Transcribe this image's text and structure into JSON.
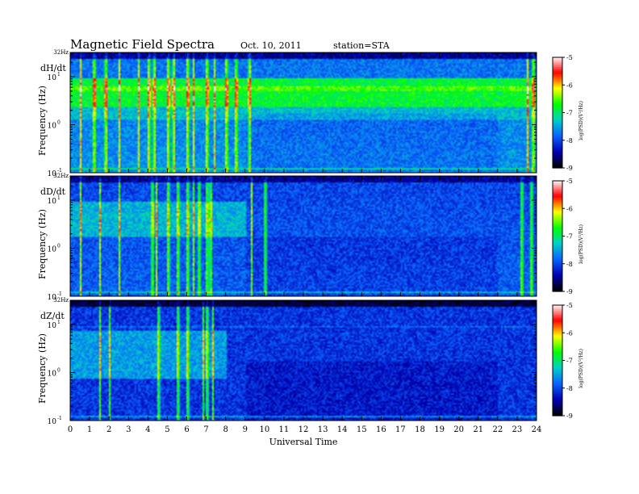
{
  "header": {
    "title": "Magnetic  Field  Spectra",
    "date": "Oct. 10, 2011",
    "station": "station=STA"
  },
  "chart_data": {
    "type": "heatmap",
    "xlabel": "Universal Time",
    "xlim": [
      0,
      24
    ],
    "x_ticks": [
      "0",
      "1",
      "2",
      "3",
      "4",
      "5",
      "6",
      "7",
      "8",
      "9",
      "10",
      "11",
      "12",
      "13",
      "14",
      "15",
      "16",
      "17",
      "18",
      "19",
      "20",
      "21",
      "22",
      "23",
      "24"
    ],
    "ylabel": "Frequency (Hz)",
    "yscale": "log",
    "ylim": [
      0.1,
      32
    ],
    "y_top_label": "32Hz",
    "y_ticks": [
      {
        "value": 0.1,
        "base": "10",
        "exp": "-1"
      },
      {
        "value": 1,
        "base": "10",
        "exp": "0"
      },
      {
        "value": 10,
        "base": "10",
        "exp": "1"
      }
    ],
    "colorbar": {
      "label": "log(PSD)(V²/Hz)",
      "range": [
        -9,
        -5
      ],
      "ticks": [
        "-5",
        "-6",
        "-7",
        "-8",
        "-9"
      ],
      "colors": [
        "#000000",
        "#0000b4",
        "#0a64ff",
        "#00d0c8",
        "#00ff00",
        "#ffff00",
        "#ff0000",
        "#ffffff"
      ]
    },
    "panels": [
      {
        "label": "dH/dt",
        "activity_bursts_ut": [
          0.5,
          1.2,
          1.8,
          2.5,
          3.5,
          4.0,
          4.3,
          5.0,
          5.3,
          6.0,
          6.3,
          7.0,
          7.4,
          8.0,
          8.5,
          9.2,
          23.5,
          23.8
        ]
      },
      {
        "label": "dD/dt",
        "activity_bursts_ut": [
          0.5,
          1.5,
          2.5,
          4.2,
          4.4,
          5.0,
          5.5,
          6.0,
          6.3,
          6.6,
          7.0,
          7.2,
          9.3,
          10.0,
          23.2,
          23.7
        ]
      },
      {
        "label": "dZ/dt",
        "activity_bursts_ut": [
          1.5,
          2.0,
          4.5,
          5.5,
          6.0,
          6.8,
          7.0,
          7.3
        ]
      }
    ]
  }
}
